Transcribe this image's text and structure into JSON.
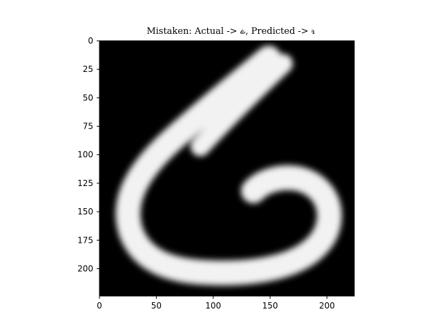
{
  "figure": {
    "title": "Mistaken: Actual -> ꮂ, Predicted -> ꮈ"
  },
  "image": {
    "description_hint": "grayscale character image",
    "colors": {
      "background": "#000000",
      "stroke": "#f3f3f3",
      "stroke_edge": "#b9b9b9",
      "frame": "#000000"
    }
  },
  "axes": {
    "x_ticks": [
      "0",
      "50",
      "100",
      "150",
      "200"
    ],
    "y_ticks": [
      "0",
      "25",
      "50",
      "75",
      "100",
      "125",
      "150",
      "175",
      "200"
    ],
    "x_range": [
      0,
      224
    ],
    "y_range": [
      0,
      224
    ],
    "y_inverted": true
  }
}
